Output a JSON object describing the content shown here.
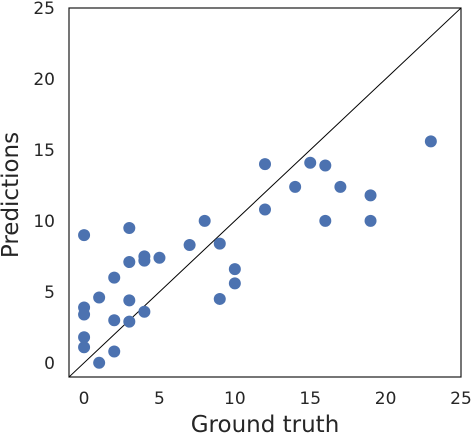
{
  "chart_data": {
    "type": "scatter",
    "xlabel": "Ground truth",
    "ylabel": "Predictions",
    "xlim": [
      -1,
      25
    ],
    "ylim": [
      -1,
      25
    ],
    "xticks": [
      0,
      5,
      10,
      15,
      20,
      25
    ],
    "yticks": [
      0,
      5,
      10,
      15,
      20,
      25
    ],
    "reference_line": "y = x",
    "grid": false,
    "colors": {
      "points": "#4c72b0",
      "line": "#000000",
      "frame": "#1a1a1a",
      "text": "#262626"
    },
    "points": [
      {
        "x": 0,
        "y": 9.0
      },
      {
        "x": 0,
        "y": 3.9
      },
      {
        "x": 0,
        "y": 3.4
      },
      {
        "x": 0,
        "y": 1.8
      },
      {
        "x": 0,
        "y": 1.1
      },
      {
        "x": 1,
        "y": 0.0
      },
      {
        "x": 1,
        "y": 4.6
      },
      {
        "x": 2,
        "y": 6.0
      },
      {
        "x": 2,
        "y": 3.0
      },
      {
        "x": 2,
        "y": 0.8
      },
      {
        "x": 3,
        "y": 9.5
      },
      {
        "x": 3,
        "y": 7.1
      },
      {
        "x": 3,
        "y": 4.4
      },
      {
        "x": 3,
        "y": 2.9
      },
      {
        "x": 4,
        "y": 7.5
      },
      {
        "x": 4,
        "y": 7.2
      },
      {
        "x": 4,
        "y": 3.6
      },
      {
        "x": 5,
        "y": 7.4
      },
      {
        "x": 7,
        "y": 8.3
      },
      {
        "x": 8,
        "y": 10.0
      },
      {
        "x": 9,
        "y": 8.4
      },
      {
        "x": 9,
        "y": 4.5
      },
      {
        "x": 10,
        "y": 6.6
      },
      {
        "x": 10,
        "y": 5.6
      },
      {
        "x": 12,
        "y": 14.0
      },
      {
        "x": 12,
        "y": 10.8
      },
      {
        "x": 14,
        "y": 12.4
      },
      {
        "x": 15,
        "y": 14.1
      },
      {
        "x": 16,
        "y": 13.9
      },
      {
        "x": 16,
        "y": 10.0
      },
      {
        "x": 17,
        "y": 12.4
      },
      {
        "x": 19,
        "y": 11.8
      },
      {
        "x": 19,
        "y": 10.0
      },
      {
        "x": 23,
        "y": 15.6
      }
    ]
  }
}
